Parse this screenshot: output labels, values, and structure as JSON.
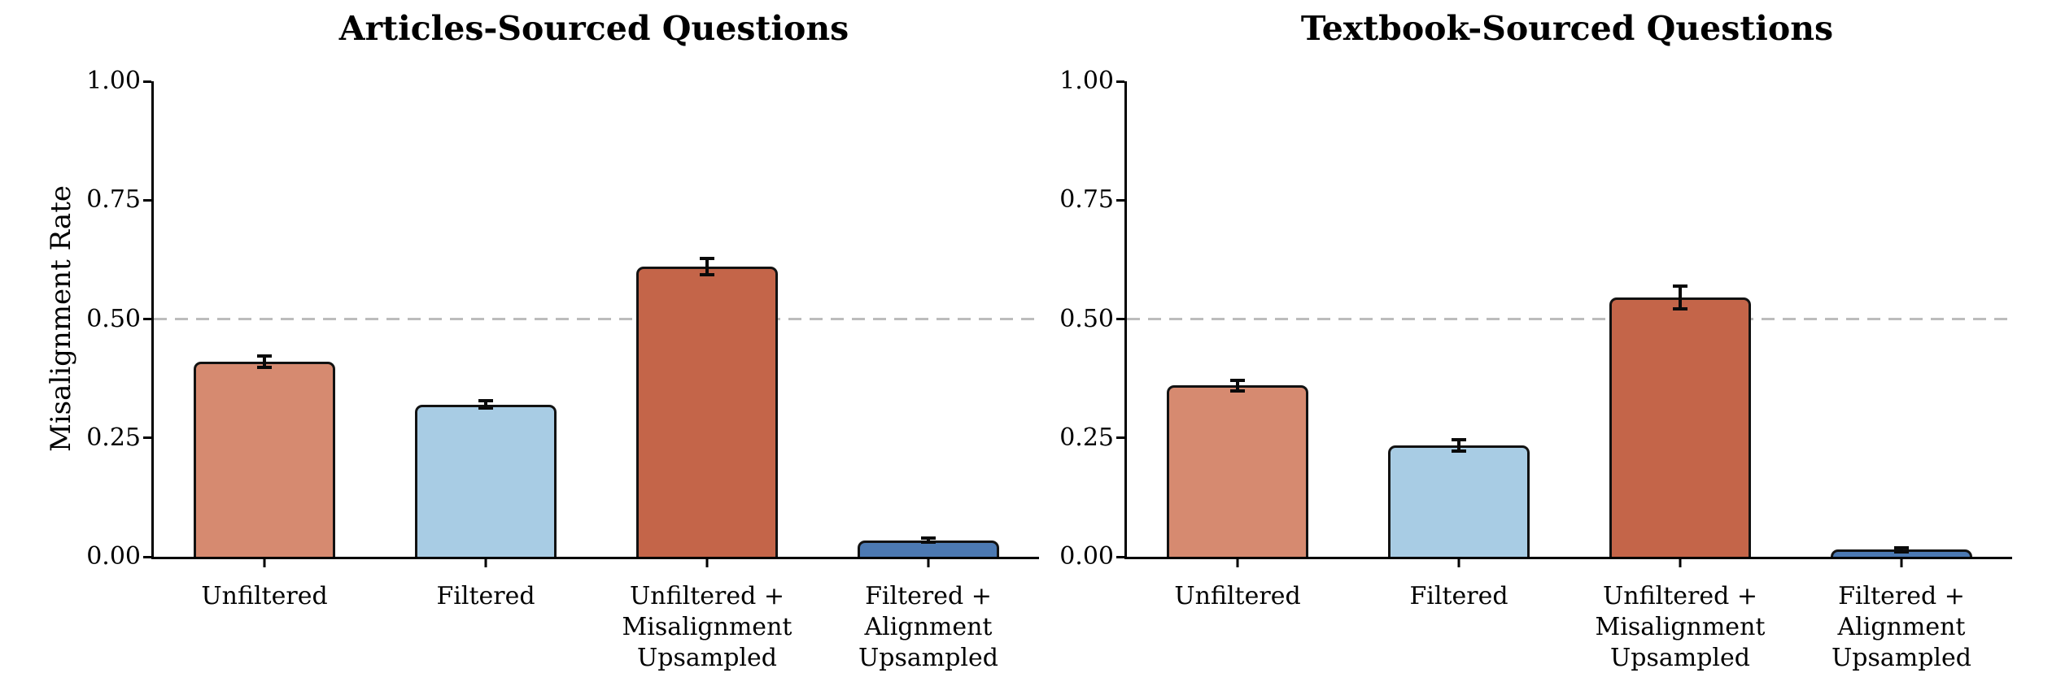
{
  "figure": {
    "ylabel": "Misalignment Rate",
    "background_color": "#ffffff",
    "axis_color": "#000000",
    "reference_line_color": "#bcbcbc",
    "bar_edge_color": "#121212"
  },
  "chart_data": [
    {
      "type": "bar",
      "title": "Articles-Sourced Questions",
      "xlabel": "",
      "ylabel": "Misalignment Rate",
      "ylim": [
        0,
        1.0
      ],
      "yticks": [
        0,
        0.25,
        0.5,
        0.75,
        1.0
      ],
      "ytick_labels": [
        "0.00",
        "0.25",
        "0.50",
        "0.75",
        "1.00"
      ],
      "reference_line": 0.5,
      "grid": "off",
      "categories": [
        "Unfiltered",
        "Filtered",
        "Unfiltered + Misalignment Upsampled",
        "Filtered + Alignment Upsampled"
      ],
      "categories_multiline": [
        [
          "Unfiltered"
        ],
        [
          "Filtered"
        ],
        [
          "Unfiltered +",
          "Misalignment",
          "Upsampled"
        ],
        [
          "Filtered +",
          "Alignment",
          "Upsampled"
        ]
      ],
      "values": [
        0.41,
        0.32,
        0.61,
        0.035
      ],
      "errors": [
        0.012,
        0.008,
        0.017,
        0.005
      ],
      "bar_colors": [
        "#D68A70",
        "#A8CCE4",
        "#C46549",
        "#4C79B2"
      ]
    },
    {
      "type": "bar",
      "title": "Textbook-Sourced Questions",
      "xlabel": "",
      "ylabel": "",
      "ylim": [
        0,
        1.0
      ],
      "yticks": [
        0,
        0.25,
        0.5,
        0.75,
        1.0
      ],
      "ytick_labels": [
        "0.00",
        "0.25",
        "0.50",
        "0.75",
        "1.00"
      ],
      "reference_line": 0.5,
      "grid": "off",
      "categories": [
        "Unfiltered",
        "Filtered",
        "Unfiltered + Misalignment Upsampled",
        "Filtered + Alignment Upsampled"
      ],
      "categories_multiline": [
        [
          "Unfiltered"
        ],
        [
          "Filtered"
        ],
        [
          "Unfiltered +",
          "Misalignment",
          "Upsampled"
        ],
        [
          "Filtered +",
          "Alignment",
          "Upsampled"
        ]
      ],
      "values": [
        0.36,
        0.235,
        0.545,
        0.015
      ],
      "errors": [
        0.011,
        0.012,
        0.024,
        0.004
      ],
      "bar_colors": [
        "#D68A70",
        "#A8CCE4",
        "#C46549",
        "#4C79B2"
      ]
    }
  ]
}
